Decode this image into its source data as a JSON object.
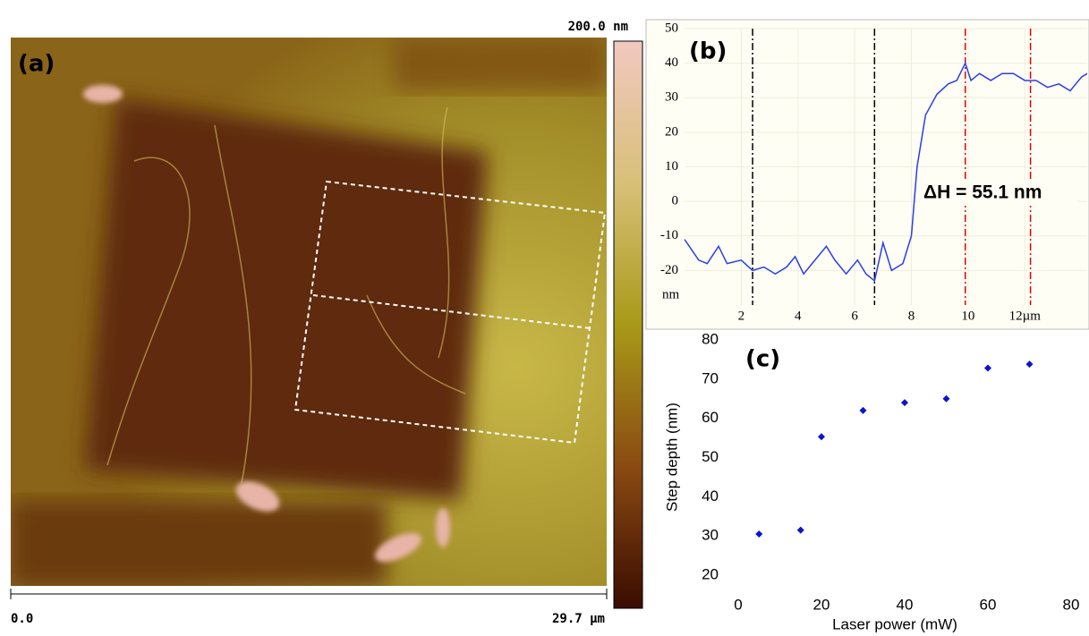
{
  "chart_data": [
    {
      "type": "image",
      "label": "(a)",
      "colorbar_max_label": "200.0 nm",
      "scale_start_label": "0.0",
      "scale_end_label": "29.7 µm"
    },
    {
      "type": "line",
      "label": "(b)",
      "annotation": "ΔH = 55.1 nm",
      "y_unit": "nm",
      "color": "#2a3ee6",
      "x": [
        0,
        0.5,
        0.8,
        1.2,
        1.5,
        2.0,
        2.4,
        2.8,
        3.2,
        3.6,
        3.9,
        4.2,
        4.6,
        5.0,
        5.3,
        5.7,
        6.1,
        6.4,
        6.7,
        7.0,
        7.3,
        7.7,
        8.0,
        8.2,
        8.5,
        8.9,
        9.3,
        9.6,
        9.9,
        10.1,
        10.4,
        10.8,
        11.2,
        11.6,
        12.0,
        12.4,
        12.8,
        13.2,
        13.6,
        14.0,
        14.2
      ],
      "values": [
        -11,
        -17,
        -18,
        -13,
        -18,
        -17,
        -20,
        -19,
        -21,
        -19,
        -16,
        -21,
        -17,
        -13,
        -17,
        -21,
        -17,
        -21,
        -23,
        -12,
        -20,
        -18,
        -10,
        10,
        25,
        31,
        34,
        35,
        40,
        35,
        37,
        35,
        37,
        37,
        35,
        35,
        33,
        34,
        32,
        36,
        37
      ],
      "markers": [
        {
          "x": 2.4,
          "color": "#000000"
        },
        {
          "x": 6.7,
          "color": "#000000"
        },
        {
          "x": 9.9,
          "color": "#e00000"
        },
        {
          "x": 12.2,
          "color": "#e00000"
        }
      ],
      "xlim": [
        0,
        14.2
      ],
      "ylim": [
        -30,
        50
      ],
      "xticks": [
        2,
        4,
        6,
        8,
        10,
        {
          "value": 12,
          "label": "12µm"
        }
      ],
      "yticks": [
        50,
        40,
        30,
        20,
        10,
        0,
        -10,
        -20
      ]
    },
    {
      "type": "scatter",
      "label": "(c)",
      "color": "#0a14d0",
      "x": [
        5,
        15,
        20,
        30,
        40,
        50,
        60,
        70
      ],
      "values": [
        30.5,
        31.5,
        55.3,
        62,
        64,
        65,
        72.8,
        73.8
      ],
      "xlabel": "Laser power (mW)",
      "ylabel": "Step depth (nm)",
      "xlim": [
        0,
        80
      ],
      "ylim": [
        20,
        80
      ],
      "xticks": [
        0,
        20,
        40,
        60,
        80
      ],
      "yticks": [
        20,
        30,
        40,
        50,
        60,
        70,
        80
      ]
    }
  ]
}
